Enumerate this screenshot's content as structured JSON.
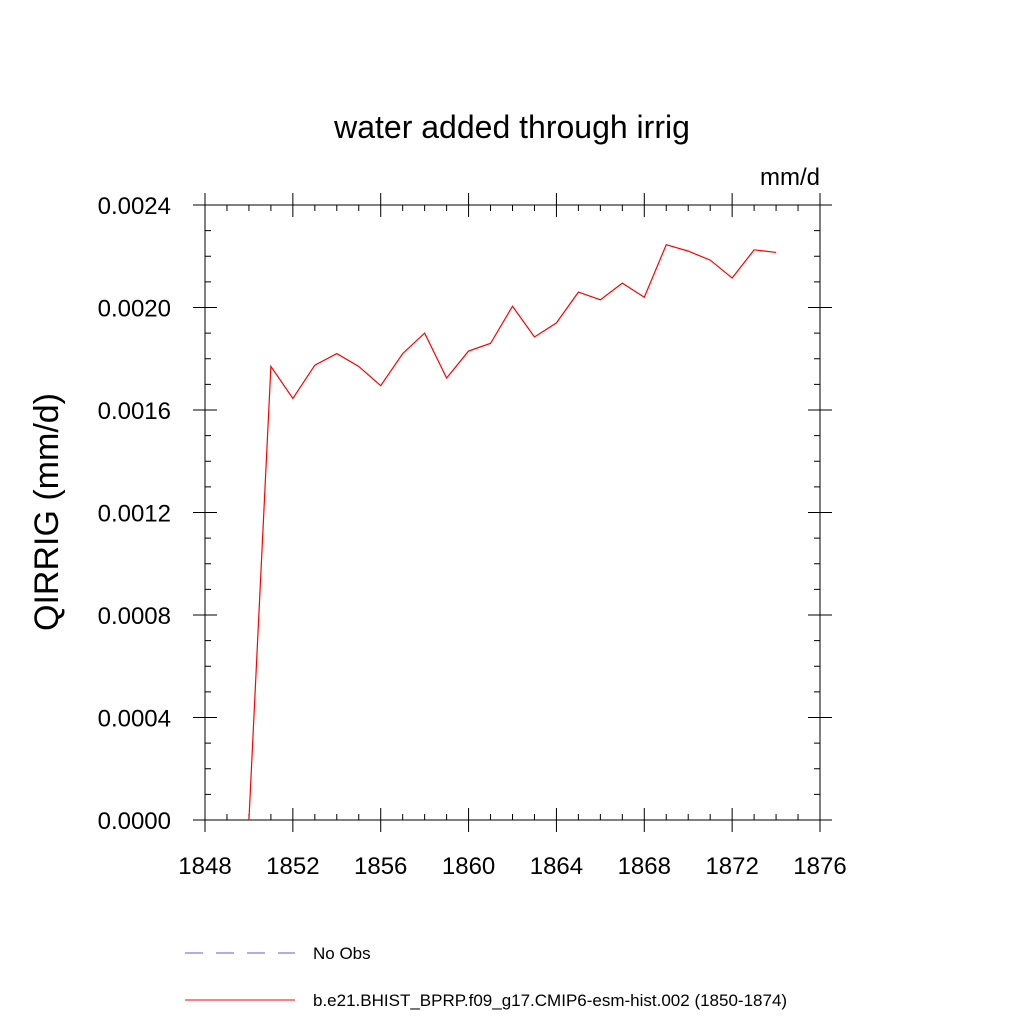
{
  "chart_data": {
    "type": "line",
    "title": "water added through irrig",
    "units_label": "mm/d",
    "xlabel": "",
    "ylabel": "QIRRIG  (mm/d)",
    "xlim": [
      1848,
      1876
    ],
    "ylim": [
      0.0,
      0.0024
    ],
    "x_major_ticks": [
      1848,
      1852,
      1856,
      1860,
      1864,
      1868,
      1872,
      1876
    ],
    "x_minor_step": 1,
    "y_major_ticks": [
      0.0,
      0.0004,
      0.0008,
      0.0012,
      0.0016,
      0.002,
      0.0024
    ],
    "y_tick_labels": [
      "0.0000",
      "0.0004",
      "0.0008",
      "0.0012",
      "0.0016",
      "0.0020",
      "0.0024"
    ],
    "y_minor_step": 0.0001,
    "grid": false,
    "legend_position": "bottom",
    "series": [
      {
        "name": "No Obs",
        "color": "#6a5acd",
        "dash": "dashed",
        "x": [],
        "values": []
      },
      {
        "name": "b.e21.BHIST_BPRP.f09_g17.CMIP6-esm-hist.002 (1850-1874)",
        "color": "#ff0000",
        "dash": "solid",
        "x": [
          1850,
          1851,
          1852,
          1853,
          1854,
          1855,
          1856,
          1857,
          1858,
          1859,
          1860,
          1861,
          1862,
          1863,
          1864,
          1865,
          1866,
          1867,
          1868,
          1869,
          1870,
          1871,
          1872,
          1873,
          1874
        ],
        "values": [
          0.0,
          0.00177,
          0.001645,
          0.001775,
          0.00182,
          0.00177,
          0.001695,
          0.00182,
          0.0019,
          0.001725,
          0.00183,
          0.00186,
          0.002005,
          0.001885,
          0.00194,
          0.00206,
          0.00203,
          0.002095,
          0.00204,
          0.002245,
          0.00222,
          0.002185,
          0.002115,
          0.002225,
          0.002215
        ]
      }
    ]
  }
}
